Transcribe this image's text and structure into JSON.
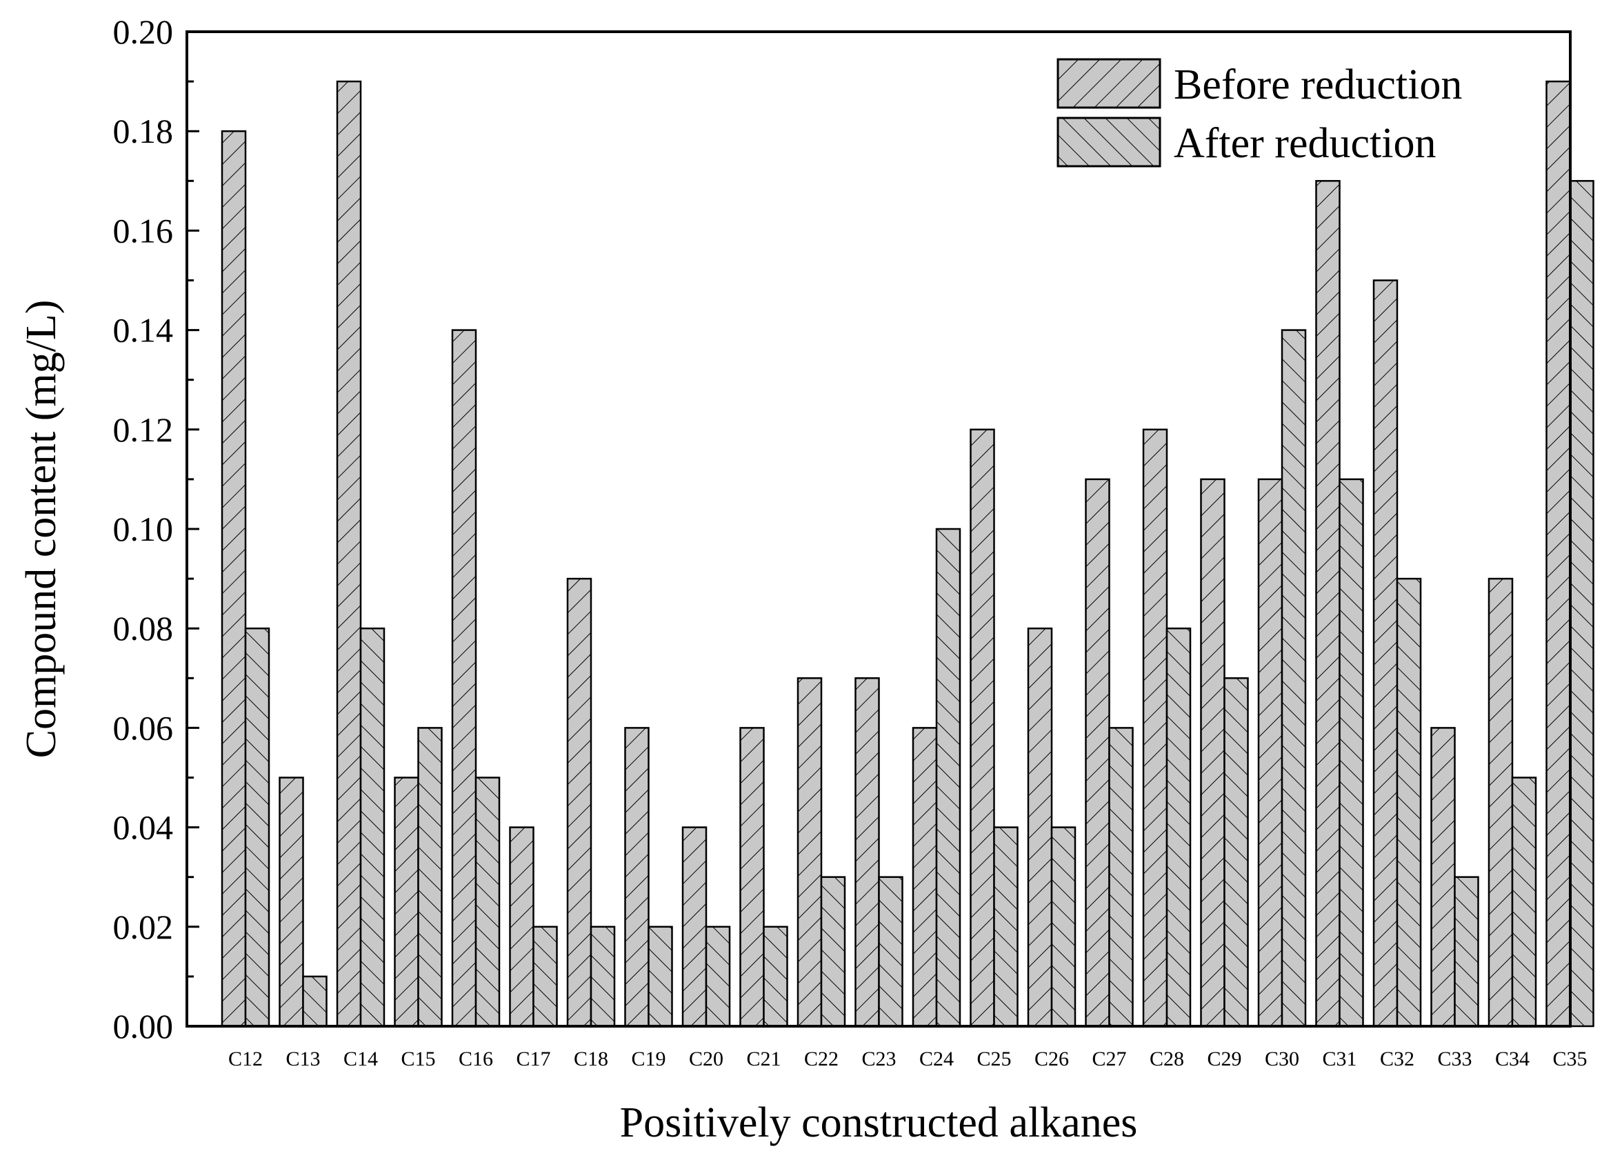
{
  "chart_data": {
    "type": "bar",
    "xlabel": "Positively constructed alkanes",
    "ylabel": "Compound content (mg/L)",
    "ylim": [
      0,
      0.2
    ],
    "yticks": [
      "0.00",
      "0.02",
      "0.04",
      "0.06",
      "0.08",
      "0.10",
      "0.12",
      "0.14",
      "0.16",
      "0.18",
      "0.20"
    ],
    "categories": [
      "C12",
      "C13",
      "C14",
      "C15",
      "C16",
      "C17",
      "C18",
      "C19",
      "C20",
      "C21",
      "C22",
      "C23",
      "C24",
      "C25",
      "C26",
      "C27",
      "C28",
      "C29",
      "C30",
      "C31",
      "C32",
      "C33",
      "C34",
      "C35"
    ],
    "series": [
      {
        "name": "Before reduction",
        "hatch": "forward-diagonal",
        "values": [
          0.18,
          0.05,
          0.19,
          0.05,
          0.14,
          0.04,
          0.09,
          0.06,
          0.04,
          0.06,
          0.07,
          0.07,
          0.06,
          0.12,
          0.08,
          0.11,
          0.12,
          0.11,
          0.11,
          0.17,
          0.15,
          0.06,
          0.09,
          0.19
        ]
      },
      {
        "name": "After reduction",
        "hatch": "backward-diagonal",
        "values": [
          0.08,
          0.01,
          0.08,
          0.06,
          0.05,
          0.02,
          0.02,
          0.02,
          0.02,
          0.02,
          0.03,
          0.03,
          0.1,
          0.04,
          0.04,
          0.06,
          0.08,
          0.07,
          0.14,
          0.11,
          0.09,
          0.03,
          0.05,
          0.17
        ]
      }
    ],
    "legend": {
      "position": "top-right"
    },
    "grid": false,
    "bar_fill": "#c8c8c8",
    "line_color": "#000000"
  }
}
